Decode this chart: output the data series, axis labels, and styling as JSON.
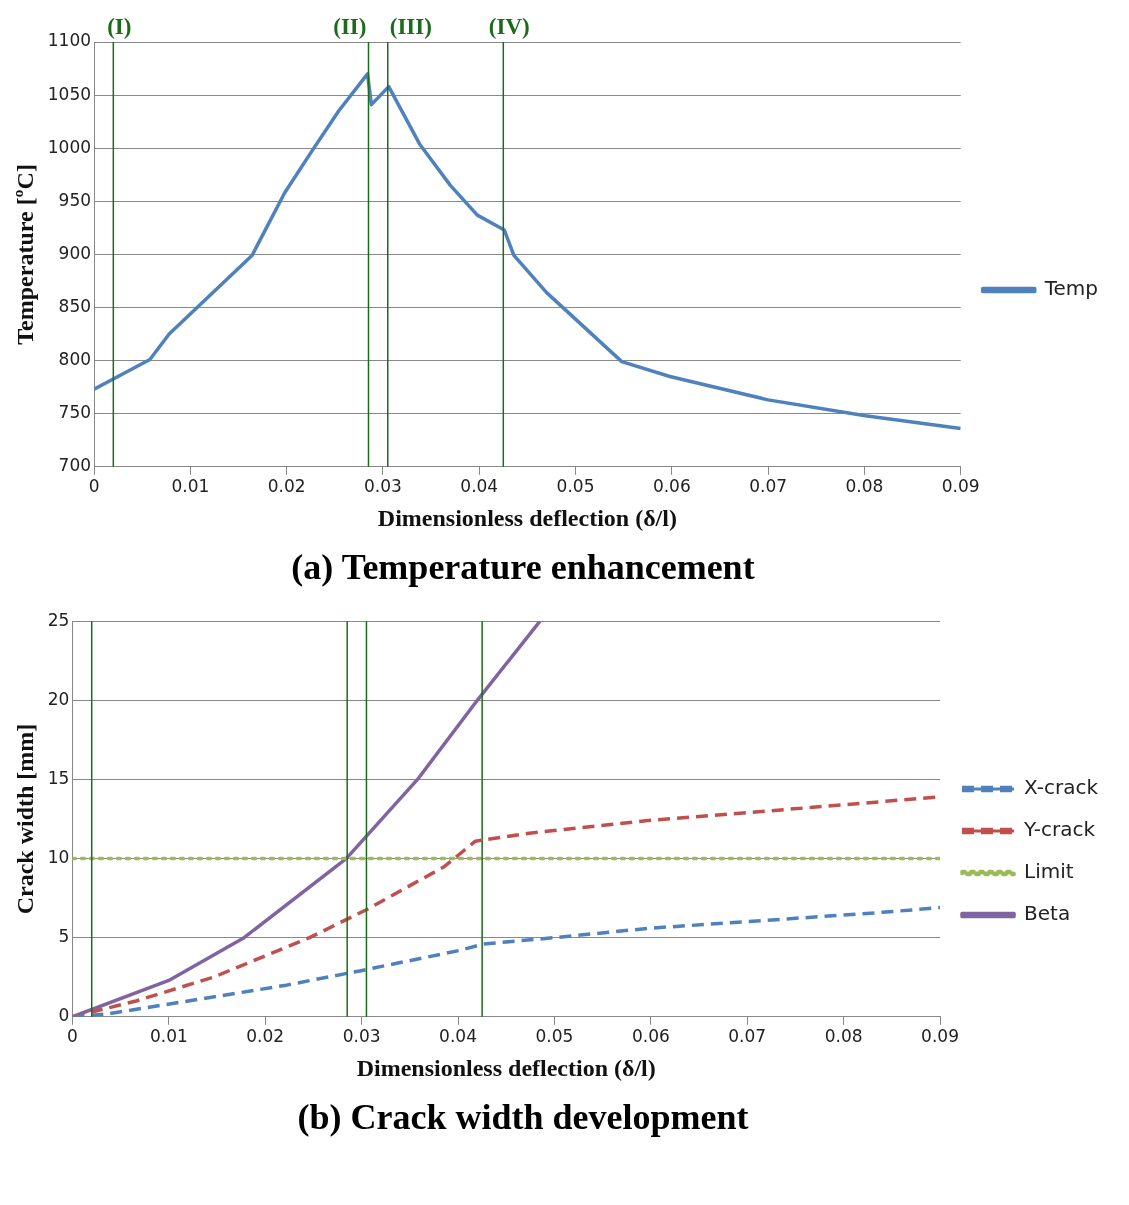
{
  "chart_data": [
    {
      "type": "line",
      "title": "(a) Temperature enhancement",
      "xlabel": "Dimensionless deflection (δ/l)",
      "ylabel": "Temperature [ºC]",
      "xlim": [
        0,
        0.09
      ],
      "xticks": [
        0,
        0.01,
        0.02,
        0.03,
        0.04,
        0.05,
        0.06,
        0.07,
        0.08,
        0.09
      ],
      "ylim": [
        700,
        1100
      ],
      "yticks": [
        700,
        750,
        800,
        850,
        900,
        950,
        1000,
        1050,
        1100
      ],
      "grid": "y",
      "legend": "right",
      "marker": "none",
      "series": [
        {
          "name": "Temp",
          "color": "#4f81bd",
          "line_style": "solid",
          "x": [
            0,
            0.0058,
            0.0078,
            0.0164,
            0.0198,
            0.0226,
            0.0254,
            0.0284,
            0.0288,
            0.0306,
            0.0338,
            0.037,
            0.0398,
            0.0426,
            0.0436,
            0.047,
            0.0548,
            0.0598,
            0.07,
            0.0801,
            0.09
          ],
          "values": [
            773,
            801,
            825,
            899,
            958,
            997,
            1035,
            1070,
            1041,
            1058,
            1004,
            965,
            937,
            923,
            899,
            864,
            799,
            785,
            763,
            748,
            736
          ]
        }
      ],
      "ref_lines": [
        {
          "axis": "x",
          "value": 0.002,
          "label": "(I)",
          "color": "#1a6b1a"
        },
        {
          "axis": "x",
          "value": 0.0285,
          "label": "(II)",
          "color": "#1a6b1a"
        },
        {
          "axis": "x",
          "value": 0.0305,
          "label": "(III)",
          "color": "#1a6b1a"
        },
        {
          "axis": "x",
          "value": 0.0425,
          "label": "(IV)",
          "color": "#1a6b1a"
        }
      ]
    },
    {
      "type": "line",
      "title": "(b) Crack width development",
      "xlabel": "Dimensionless deflection (δ/l)",
      "ylabel": "Crack width [mm]",
      "xlim": [
        0,
        0.09
      ],
      "xticks": [
        0,
        0.01,
        0.02,
        0.03,
        0.04,
        0.05,
        0.06,
        0.07,
        0.08,
        0.09
      ],
      "ylim": [
        0,
        25
      ],
      "yticks": [
        0,
        5,
        10,
        15,
        20,
        25
      ],
      "grid": "y",
      "legend": "right",
      "marker": "none",
      "series": [
        {
          "name": "X-crack",
          "color": "#4f81bd",
          "line_style": "dashed",
          "x": [
            0,
            0.0038,
            0.011,
            0.0222,
            0.0298,
            0.0402,
            0.0426,
            0.05,
            0.0599,
            0.0697,
            0.084,
            0.09
          ],
          "values": [
            0,
            0.2,
            0.9,
            2,
            2.9,
            4.2,
            4.6,
            5,
            5.6,
            6,
            6.6,
            6.9
          ]
        },
        {
          "name": "Y-crack",
          "color": "#c0504d",
          "line_style": "dashed",
          "x": [
            0,
            0.0066,
            0.0146,
            0.0246,
            0.0306,
            0.0386,
            0.0418,
            0.0474,
            0.0597,
            0.07,
            0.09
          ],
          "values": [
            0,
            1,
            2.5,
            5,
            6.8,
            9.5,
            11.1,
            11.6,
            12.4,
            12.9,
            13.9
          ]
        },
        {
          "name": "Limit",
          "color": "#9bbb59",
          "line_style": "dotted",
          "x": [
            0,
            0.09
          ],
          "values": [
            10,
            10
          ]
        },
        {
          "name": "Beta",
          "color": "#8064a2",
          "line_style": "solid",
          "x": [
            0,
            0.01,
            0.0178,
            0.0284,
            0.0358,
            0.042,
            0.0485
          ],
          "values": [
            0,
            2.3,
            5,
            10,
            15,
            20,
            25
          ]
        }
      ],
      "ref_lines": [
        {
          "axis": "x",
          "value": 0.002,
          "color": "#1a6b1a"
        },
        {
          "axis": "x",
          "value": 0.0285,
          "color": "#1a6b1a"
        },
        {
          "axis": "x",
          "value": 0.0305,
          "color": "#1a6b1a"
        },
        {
          "axis": "x",
          "value": 0.0425,
          "color": "#1a6b1a"
        }
      ]
    }
  ]
}
